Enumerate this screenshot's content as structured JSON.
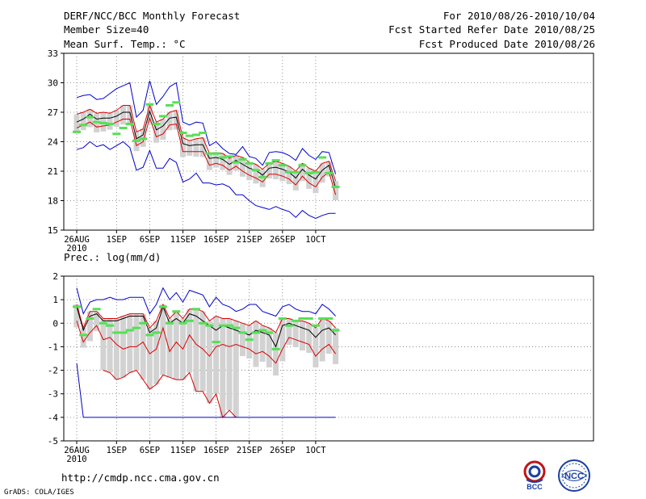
{
  "header": {
    "title": "DERF/NCC/BCC Monthly Forecast",
    "member_size": "Member Size=40",
    "variable": "Mean Surf. Temp.: °C",
    "period": "For 2010/08/26-2010/10/04",
    "start_date": "Fcst Started Refer Date 2010/08/25",
    "produced_date": "Fcst Produced Date 2010/08/26"
  },
  "footer": {
    "url": "http://cmdp.ncc.cma.gov.cn",
    "credit": "GrADS: COLA/IGES",
    "logo_bcc": "BCC",
    "logo_ncc": "NCC"
  },
  "colors": {
    "box": "#d2d2d2",
    "mean": "#55e055",
    "median": "#000000",
    "quartile": "#dd0000",
    "extreme": "#0000cc"
  },
  "chart_data": [
    {
      "type": "boxplot-line",
      "title": "Mean Surf. Temp.: °C",
      "ylabel": "°C",
      "ylim": [
        15,
        33
      ],
      "yticks": [
        15,
        18,
        21,
        24,
        27,
        30,
        33
      ],
      "xticks": [
        {
          "day": 0,
          "label": "26AUG",
          "sub": "2010"
        },
        {
          "day": 6,
          "label": "1SEP"
        },
        {
          "day": 11,
          "label": "6SEP"
        },
        {
          "day": 16,
          "label": "11SEP"
        },
        {
          "day": 21,
          "label": "16SEP"
        },
        {
          "day": 26,
          "label": "21SEP"
        },
        {
          "day": 31,
          "label": "26SEP"
        },
        {
          "day": 36,
          "label": "1OCT"
        }
      ],
      "grid": true,
      "days": [
        0,
        1,
        2,
        3,
        4,
        5,
        6,
        7,
        8,
        9,
        10,
        11,
        12,
        13,
        14,
        15,
        16,
        17,
        18,
        19,
        20,
        21,
        22,
        23,
        24,
        25,
        26,
        27,
        28,
        29,
        30,
        31,
        32,
        33,
        34,
        35,
        36,
        37,
        38,
        39
      ],
      "series": [
        {
          "name": "max",
          "values": [
            28.5,
            28.7,
            28.8,
            28.3,
            28.4,
            28.9,
            29.4,
            29.7,
            30.0,
            26.5,
            27.2,
            30.2,
            27.8,
            28.6,
            29.6,
            30.0,
            26.0,
            25.7,
            26.0,
            25.9,
            23.6,
            24.0,
            23.3,
            22.8,
            22.7,
            23.5,
            22.5,
            22.3,
            21.6,
            22.9,
            23.0,
            22.9,
            22.6,
            22.1,
            23.3,
            22.6,
            22.2,
            23.0,
            22.9,
            20.7
          ]
        },
        {
          "name": "q3",
          "values": [
            26.8,
            27.0,
            27.3,
            26.9,
            27.0,
            26.9,
            27.2,
            27.7,
            27.7,
            25.0,
            25.3,
            27.7,
            26.0,
            26.3,
            27.0,
            27.2,
            24.4,
            24.1,
            24.3,
            24.4,
            22.8,
            22.9,
            22.8,
            22.3,
            22.6,
            22.4,
            21.9,
            21.7,
            21.2,
            21.8,
            22.0,
            21.8,
            21.5,
            21.0,
            21.8,
            21.3,
            21.0,
            21.8,
            22.0,
            20.0
          ]
        },
        {
          "name": "median",
          "values": [
            26.0,
            26.3,
            26.8,
            26.3,
            26.4,
            26.4,
            26.6,
            27.0,
            27.0,
            24.3,
            24.7,
            27.1,
            25.2,
            25.6,
            26.4,
            26.5,
            23.8,
            23.6,
            23.7,
            23.7,
            22.3,
            22.4,
            22.2,
            21.7,
            22.1,
            21.7,
            21.3,
            21.1,
            20.6,
            21.3,
            21.4,
            21.2,
            20.9,
            20.3,
            21.2,
            20.6,
            20.2,
            21.1,
            21.6,
            19.3
          ]
        },
        {
          "name": "q1",
          "values": [
            25.4,
            25.7,
            26.0,
            25.5,
            25.6,
            25.7,
            26.0,
            26.3,
            26.3,
            23.6,
            24.0,
            26.4,
            24.5,
            24.8,
            25.7,
            25.8,
            23.0,
            23.0,
            23.0,
            23.0,
            21.6,
            21.8,
            21.6,
            21.1,
            21.5,
            21.0,
            20.6,
            20.3,
            19.9,
            20.7,
            20.7,
            20.5,
            20.2,
            19.6,
            20.5,
            19.8,
            19.4,
            20.4,
            20.9,
            18.6
          ]
        },
        {
          "name": "min",
          "values": [
            23.2,
            23.4,
            24.0,
            23.5,
            23.7,
            23.2,
            23.6,
            24.0,
            23.4,
            21.1,
            21.4,
            23.1,
            21.3,
            21.3,
            22.3,
            21.9,
            19.9,
            20.2,
            20.8,
            19.8,
            19.8,
            19.6,
            19.7,
            19.4,
            18.6,
            18.6,
            18.0,
            17.5,
            17.3,
            17.1,
            17.4,
            17.1,
            16.9,
            16.3,
            17.0,
            16.5,
            16.2,
            16.5,
            16.7,
            16.7
          ]
        },
        {
          "name": "mean",
          "values": [
            25.0,
            25.7,
            26.5,
            26.0,
            25.9,
            25.8,
            24.8,
            25.4,
            25.8,
            24.1,
            24.3,
            27.8,
            25.8,
            26.6,
            27.7,
            28.0,
            24.9,
            24.6,
            24.7,
            24.9,
            22.8,
            22.8,
            22.4,
            22.5,
            21.9,
            22.2,
            21.8,
            21.1,
            20.4,
            21.8,
            22.1,
            21.6,
            20.9,
            20.9,
            21.6,
            20.8,
            20.9,
            22.4,
            20.8,
            19.4
          ]
        }
      ]
    },
    {
      "type": "boxplot-line",
      "title": "Prec.: log(mm/d)",
      "ylabel": "log(mm/d)",
      "ylim": [
        -5,
        2
      ],
      "yticks": [
        -5,
        -4,
        -3,
        -2,
        -1,
        0,
        1,
        2
      ],
      "xticks": [
        {
          "day": 0,
          "label": "26AUG",
          "sub": "2010"
        },
        {
          "day": 6,
          "label": "1SEP"
        },
        {
          "day": 11,
          "label": "6SEP"
        },
        {
          "day": 16,
          "label": "11SEP"
        },
        {
          "day": 21,
          "label": "16SEP"
        },
        {
          "day": 26,
          "label": "21SEP"
        },
        {
          "day": 31,
          "label": "26SEP"
        },
        {
          "day": 36,
          "label": "1OCT"
        }
      ],
      "grid": true,
      "days": [
        0,
        1,
        2,
        3,
        4,
        5,
        6,
        7,
        8,
        9,
        10,
        11,
        12,
        13,
        14,
        15,
        16,
        17,
        18,
        19,
        20,
        21,
        22,
        23,
        24,
        25,
        26,
        27,
        28,
        29,
        30,
        31,
        32,
        33,
        34,
        35,
        36,
        37,
        38,
        39
      ],
      "series": [
        {
          "name": "max",
          "values": [
            1.5,
            0.4,
            0.9,
            1.0,
            1.0,
            1.1,
            1.0,
            1.0,
            1.1,
            1.1,
            1.1,
            0.4,
            0.8,
            1.5,
            1.0,
            1.3,
            0.9,
            1.4,
            1.3,
            1.2,
            0.7,
            1.1,
            0.8,
            0.7,
            0.5,
            0.6,
            0.8,
            0.8,
            0.5,
            0.4,
            0.3,
            0.7,
            0.8,
            0.6,
            0.5,
            0.5,
            0.4,
            0.8,
            0.6,
            0.3
          ]
        },
        {
          "name": "q3",
          "values": [
            0.8,
            -0.2,
            0.5,
            0.5,
            0.2,
            0.2,
            0.2,
            0.3,
            0.4,
            0.4,
            0.4,
            -0.2,
            0.1,
            0.8,
            0.2,
            0.5,
            0.2,
            0.6,
            0.6,
            0.5,
            0.1,
            0.3,
            0.2,
            0.2,
            0.1,
            0.0,
            -0.1,
            0.1,
            -0.1,
            -0.2,
            -0.4,
            0.2,
            0.2,
            0.1,
            0.1,
            0.0,
            -0.2,
            0.2,
            0.1,
            -0.2
          ]
        },
        {
          "name": "median",
          "values": [
            0.7,
            -0.3,
            0.3,
            0.4,
            0.1,
            0.1,
            0.1,
            0.2,
            0.3,
            0.3,
            0.3,
            -0.4,
            -0.2,
            0.7,
            0.0,
            0.2,
            0.0,
            0.4,
            0.3,
            0.1,
            -0.1,
            -0.3,
            -0.1,
            -0.2,
            -0.3,
            -0.4,
            -0.5,
            -0.3,
            -0.4,
            -0.5,
            -1.0,
            -0.1,
            0.0,
            -0.1,
            -0.2,
            -0.3,
            -0.6,
            -0.3,
            -0.2,
            -0.5
          ]
        },
        {
          "name": "q1",
          "values": [
            0.1,
            -0.8,
            -0.4,
            -0.1,
            -0.7,
            -0.6,
            -0.9,
            -1.1,
            -1.0,
            -1.0,
            -0.8,
            -1.3,
            -1.1,
            -0.2,
            -1.2,
            -0.8,
            -1.1,
            -0.5,
            -0.9,
            -1.1,
            -1.4,
            -1.0,
            -0.9,
            -1.0,
            -0.9,
            -1.0,
            -1.1,
            -1.3,
            -1.2,
            -1.4,
            -1.7,
            -1.1,
            -0.6,
            -0.7,
            -0.8,
            -0.9,
            -1.4,
            -1.1,
            -0.9,
            -1.3
          ]
        },
        {
          "name": "min",
          "values": [
            -1.7,
            -4.0,
            -4.0,
            -4.0,
            -4.0,
            -4.0,
            -4.0,
            -4.0,
            -4.0,
            -4.0,
            -4.0,
            -4.0,
            -4.0,
            -4.0,
            -4.0,
            -4.0,
            -4.0,
            -4.0,
            -4.0,
            -4.0,
            -4.0,
            -4.0,
            -4.0,
            -4.0,
            -4.0,
            -4.0,
            -4.0,
            -4.0,
            -4.0,
            -4.0,
            -4.0,
            -4.0,
            -4.0,
            -4.0,
            -4.0,
            -4.0,
            -4.0,
            -4.0,
            -4.0,
            -4.0
          ]
        },
        {
          "name": "q1_low",
          "values": [
            null,
            null,
            null,
            null,
            -2.0,
            -2.1,
            -2.4,
            -2.3,
            -2.1,
            -2.0,
            -2.4,
            -2.8,
            -2.6,
            -2.2,
            -2.3,
            -2.4,
            -2.4,
            -2.1,
            -2.9,
            -2.9,
            -3.4,
            -3.0,
            -4.0,
            -3.7,
            -4.0,
            null,
            null,
            null,
            null,
            null,
            null,
            null,
            null,
            null,
            null,
            null,
            null,
            null,
            null,
            null
          ]
        },
        {
          "name": "mean",
          "values": [
            0.7,
            -0.5,
            0.2,
            0.6,
            0.0,
            -0.1,
            -0.4,
            -0.4,
            -0.3,
            -0.2,
            0.0,
            -0.5,
            -0.4,
            0.7,
            0.0,
            0.5,
            0.0,
            0.1,
            0.6,
            0.0,
            -0.1,
            -0.8,
            -0.1,
            -0.1,
            -0.2,
            -0.4,
            -0.7,
            -0.4,
            -0.3,
            -0.4,
            -1.1,
            0.2,
            -0.1,
            0.1,
            0.2,
            0.2,
            -0.1,
            0.2,
            0.2,
            -0.3
          ]
        }
      ]
    }
  ]
}
